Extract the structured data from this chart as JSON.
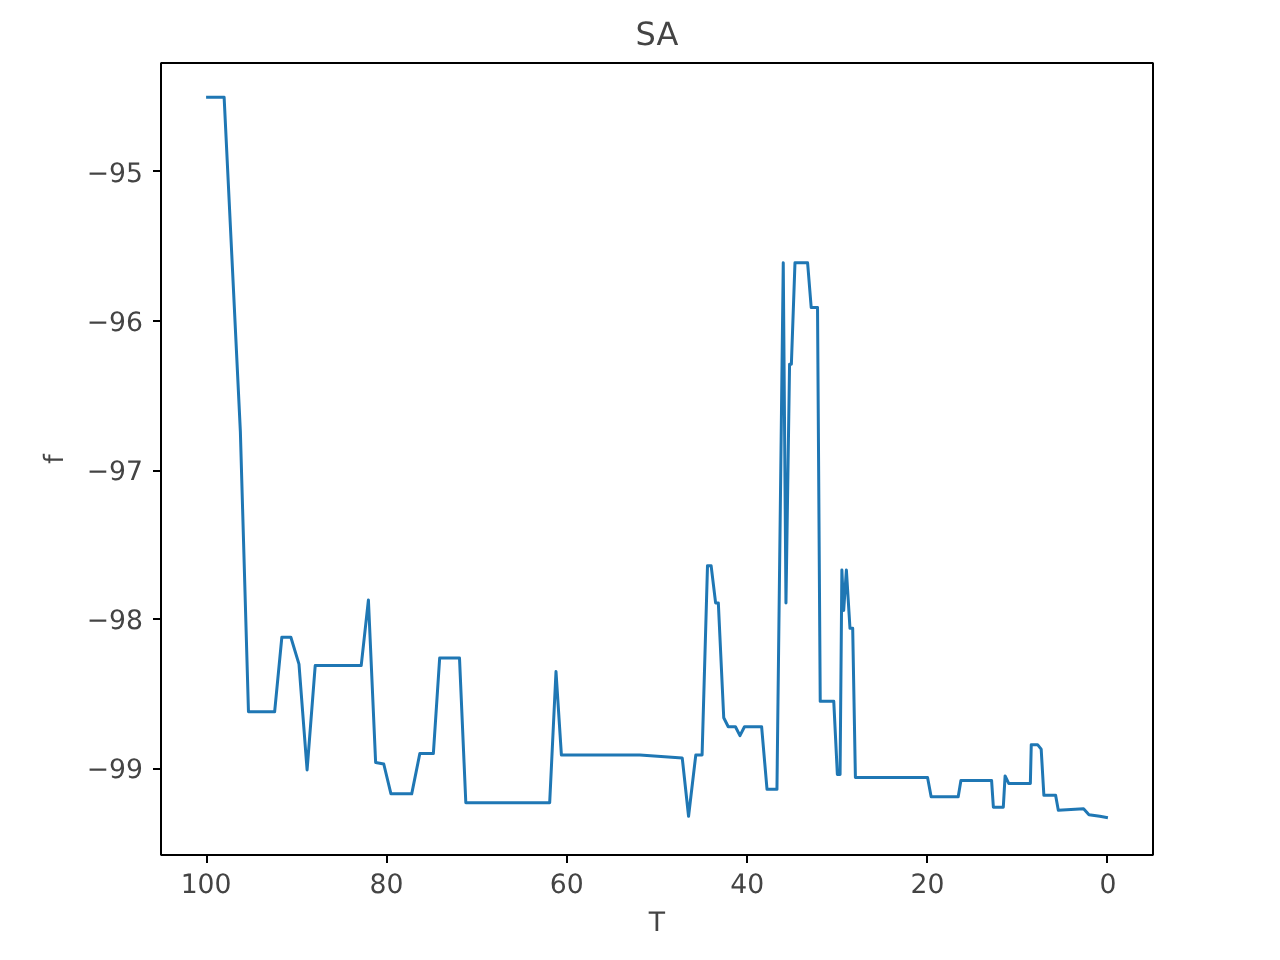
{
  "chart_data": {
    "type": "line",
    "title": "SA",
    "xlabel": "T",
    "ylabel": "f",
    "xlim": [
      105,
      -5
    ],
    "ylim": [
      -99.58,
      -94.27
    ],
    "xticks": [
      0,
      20,
      40,
      60,
      80,
      100
    ],
    "yticks": [
      {
        "value": -95,
        "label": "−95"
      },
      {
        "value": -96,
        "label": "−96"
      },
      {
        "value": -97,
        "label": "−97"
      },
      {
        "value": -98,
        "label": "−98"
      },
      {
        "value": -99,
        "label": "−99"
      }
    ],
    "grid": false,
    "series": [
      {
        "color": "#1f77b4",
        "x": [
          100,
          98,
          96.2,
          95.3,
          92.4,
          91.6,
          90.6,
          89.7,
          88.8,
          87.9,
          82.8,
          82.0,
          81.2,
          80.3,
          79.5,
          77.2,
          76.3,
          74.8,
          74.1,
          71.9,
          71.2,
          61.9,
          61.2,
          60.6,
          51.9,
          47.2,
          46.5,
          45.7,
          45.0,
          44.4,
          44.0,
          43.5,
          43.2,
          42.6,
          42.1,
          41.3,
          40.8,
          40.3,
          38.4,
          37.8,
          36.7,
          36.0,
          35.7,
          35.3,
          35.1,
          34.7,
          33.3,
          32.9,
          32.2,
          31.9,
          30.4,
          30.0,
          29.7,
          29.5,
          29.3,
          29.0,
          28.6,
          28.3,
          28.0,
          20.0,
          19.6,
          16.6,
          16.3,
          12.9,
          12.7,
          11.6,
          11.4,
          11.0,
          8.6,
          8.5,
          7.8,
          7.4,
          7.1,
          5.8,
          5.5,
          2.7,
          2.1,
          0.9,
          0
        ],
        "values": [
          -94.5,
          -94.5,
          -96.74,
          -98.62,
          -98.62,
          -98.12,
          -98.12,
          -98.3,
          -99.01,
          -98.31,
          -98.31,
          -97.87,
          -98.96,
          -98.97,
          -99.17,
          -99.17,
          -98.9,
          -98.9,
          -98.26,
          -98.26,
          -99.23,
          -99.23,
          -98.35,
          -98.91,
          -98.91,
          -98.93,
          -99.32,
          -98.91,
          -98.91,
          -97.64,
          -97.64,
          -97.89,
          -97.89,
          -98.66,
          -98.72,
          -98.72,
          -98.78,
          -98.72,
          -98.72,
          -99.14,
          -99.14,
          -95.61,
          -97.89,
          -96.29,
          -96.29,
          -95.61,
          -95.61,
          -95.91,
          -95.91,
          -98.55,
          -98.55,
          -99.04,
          -99.04,
          -97.67,
          -97.94,
          -97.67,
          -98.06,
          -98.06,
          -99.06,
          -99.06,
          -99.19,
          -99.19,
          -99.08,
          -99.08,
          -99.26,
          -99.26,
          -99.05,
          -99.1,
          -99.1,
          -98.84,
          -98.84,
          -98.87,
          -99.18,
          -99.18,
          -99.28,
          -99.27,
          -99.31,
          -99.32,
          -99.33
        ]
      }
    ]
  }
}
